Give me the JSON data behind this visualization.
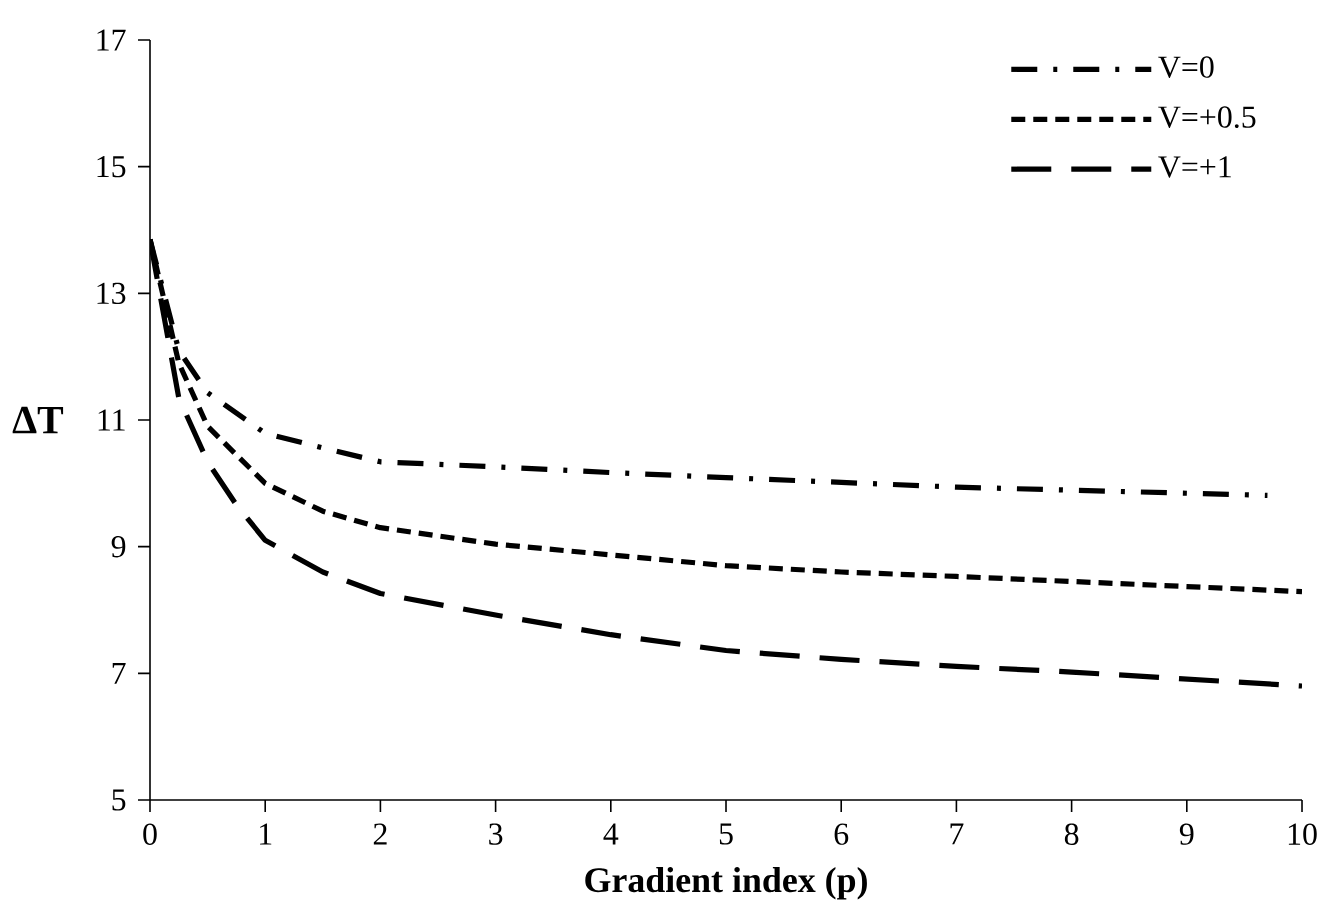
{
  "chart_data": {
    "type": "line",
    "xlabel": "Gradient index (p)",
    "ylabel": "ΔT",
    "xlim": [
      0,
      10
    ],
    "ylim": [
      5,
      17
    ],
    "xticks": [
      0,
      1,
      2,
      3,
      4,
      5,
      6,
      7,
      8,
      9,
      10
    ],
    "yticks": [
      5,
      7,
      9,
      11,
      13,
      15,
      17
    ],
    "grid": false,
    "legend": "top right",
    "marker": "none",
    "series": [
      {
        "name": "V=0",
        "color": "#000000",
        "line_style": "dashdot",
        "x": [
          0,
          0.25,
          0.5,
          1,
          1.5,
          2,
          3,
          4,
          5,
          7,
          9.7
        ],
        "values": [
          13.85,
          12.1,
          11.43,
          10.79,
          10.56,
          10.34,
          10.26,
          10.17,
          10.09,
          9.94,
          9.81
        ]
      },
      {
        "name": "V=+0.5",
        "color": "#000000",
        "line_style": "dashed",
        "x": [
          0,
          0.25,
          0.5,
          1,
          1.5,
          2,
          3,
          4,
          5,
          6,
          7,
          8,
          9,
          10
        ],
        "values": [
          13.85,
          11.9,
          10.9,
          10.0,
          9.56,
          9.3,
          9.04,
          8.87,
          8.7,
          8.6,
          8.53,
          8.45,
          8.37,
          8.29
        ]
      },
      {
        "name": "V=+1",
        "color": "#000000",
        "line_style": "longdashed",
        "x": [
          0,
          0.25,
          0.5,
          0.75,
          1,
          1.5,
          2,
          3,
          4,
          5,
          6,
          7,
          8,
          9,
          10
        ],
        "values": [
          13.85,
          11.35,
          10.34,
          9.66,
          9.1,
          8.6,
          8.26,
          7.92,
          7.61,
          7.36,
          7.22,
          7.11,
          7.02,
          6.91,
          6.8
        ]
      }
    ]
  }
}
